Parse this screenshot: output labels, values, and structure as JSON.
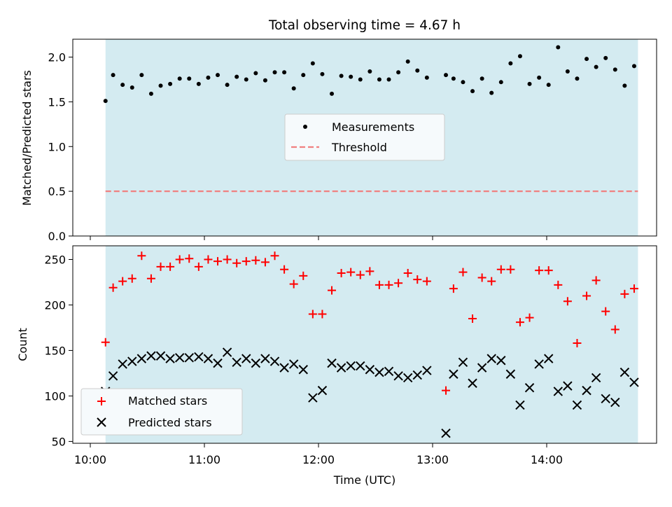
{
  "title": "Total observing time = 4.67 h",
  "colors": {
    "shade": "#d4ebf1",
    "threshold": "#f08080",
    "matched": "#ff0000",
    "predicted": "#000000",
    "measurement": "#000000"
  },
  "chart_data": [
    {
      "type": "scatter",
      "ylabel": "Matched/Predicted stars",
      "xlabel": "",
      "ylim": [
        0,
        2.2
      ],
      "yticks": [
        0.0,
        0.5,
        1.0,
        1.5,
        2.0
      ],
      "ytick_labels": [
        "0.0",
        "0.5",
        "1.0",
        "1.5",
        "2.0"
      ],
      "shaded_interval": [
        "10:08",
        "14:48"
      ],
      "threshold": 0.5,
      "legend": {
        "placement": "center",
        "entries": [
          "Measurements",
          "Threshold"
        ]
      },
      "series": [
        {
          "name": "Measurements",
          "x": [
            "10:08",
            "10:12",
            "10:17",
            "10:22",
            "10:27",
            "10:32",
            "10:37",
            "10:42",
            "10:47",
            "10:52",
            "10:57",
            "11:02",
            "11:07",
            "11:12",
            "11:17",
            "11:22",
            "11:27",
            "11:32",
            "11:37",
            "11:42",
            "11:47",
            "11:52",
            "11:57",
            "12:02",
            "12:07",
            "12:12",
            "12:17",
            "12:22",
            "12:27",
            "12:32",
            "12:37",
            "12:42",
            "12:47",
            "12:52",
            "12:57",
            "13:07",
            "13:11",
            "13:16",
            "13:21",
            "13:26",
            "13:31",
            "13:36",
            "13:41",
            "13:46",
            "13:51",
            "13:56",
            "14:01",
            "14:06",
            "14:11",
            "14:16",
            "14:21",
            "14:26",
            "14:31",
            "14:36",
            "14:41",
            "14:46"
          ],
          "y": [
            1.51,
            1.8,
            1.69,
            1.66,
            1.8,
            1.59,
            1.68,
            1.7,
            1.76,
            1.76,
            1.7,
            1.77,
            1.8,
            1.69,
            1.78,
            1.75,
            1.82,
            1.74,
            1.83,
            1.83,
            1.65,
            1.8,
            1.93,
            1.81,
            1.59,
            1.79,
            1.78,
            1.75,
            1.84,
            1.75,
            1.75,
            1.83,
            1.95,
            1.85,
            1.77,
            1.8,
            1.76,
            1.72,
            1.62,
            1.76,
            1.6,
            1.72,
            1.93,
            2.01,
            1.7,
            1.77,
            1.69,
            2.11,
            1.84,
            1.76,
            1.98,
            1.89,
            1.99,
            1.86,
            1.68,
            1.9
          ]
        }
      ]
    },
    {
      "type": "scatter",
      "ylabel": "Count",
      "xlabel": "Time (UTC)",
      "ylim": [
        48,
        265
      ],
      "yticks": [
        50,
        100,
        150,
        200,
        250
      ],
      "ytick_labels": [
        "50",
        "100",
        "150",
        "200",
        "250"
      ],
      "xticks": [
        "10:00",
        "11:00",
        "12:00",
        "13:00",
        "14:00"
      ],
      "xtick_labels": [
        "10:00",
        "11:00",
        "12:00",
        "13:00",
        "14:00"
      ],
      "shaded_interval": [
        "10:08",
        "14:48"
      ],
      "legend": {
        "placement": "lower left",
        "entries": [
          "Matched stars",
          "Predicted stars"
        ]
      },
      "series": [
        {
          "name": "Matched stars",
          "x": [
            "10:08",
            "10:12",
            "10:17",
            "10:22",
            "10:27",
            "10:32",
            "10:37",
            "10:42",
            "10:47",
            "10:52",
            "10:57",
            "11:02",
            "11:07",
            "11:12",
            "11:17",
            "11:22",
            "11:27",
            "11:32",
            "11:37",
            "11:42",
            "11:47",
            "11:52",
            "11:57",
            "12:02",
            "12:07",
            "12:12",
            "12:17",
            "12:22",
            "12:27",
            "12:32",
            "12:37",
            "12:42",
            "12:47",
            "12:52",
            "12:57",
            "13:07",
            "13:11",
            "13:16",
            "13:21",
            "13:26",
            "13:31",
            "13:36",
            "13:41",
            "13:46",
            "13:51",
            "13:56",
            "14:01",
            "14:06",
            "14:11",
            "14:16",
            "14:21",
            "14:26",
            "14:31",
            "14:36",
            "14:41",
            "14:46"
          ],
          "y": [
            159,
            219,
            226,
            229,
            254,
            229,
            242,
            242,
            250,
            251,
            242,
            250,
            248,
            250,
            246,
            248,
            249,
            247,
            254,
            239,
            223,
            232,
            190,
            190,
            216,
            235,
            236,
            233,
            237,
            222,
            222,
            224,
            235,
            228,
            226,
            106,
            218,
            236,
            185,
            230,
            226,
            239,
            239,
            181,
            186,
            238,
            238,
            222,
            204,
            158,
            210,
            227,
            193,
            173,
            212,
            218
          ]
        },
        {
          "name": "Predicted stars",
          "x": [
            "10:08",
            "10:12",
            "10:17",
            "10:22",
            "10:27",
            "10:32",
            "10:37",
            "10:42",
            "10:47",
            "10:52",
            "10:57",
            "11:02",
            "11:07",
            "11:12",
            "11:17",
            "11:22",
            "11:27",
            "11:32",
            "11:37",
            "11:42",
            "11:47",
            "11:52",
            "11:57",
            "12:02",
            "12:07",
            "12:12",
            "12:17",
            "12:22",
            "12:27",
            "12:32",
            "12:37",
            "12:42",
            "12:47",
            "12:52",
            "12:57",
            "13:07",
            "13:11",
            "13:16",
            "13:21",
            "13:26",
            "13:31",
            "13:36",
            "13:41",
            "13:46",
            "13:51",
            "13:56",
            "14:01",
            "14:06",
            "14:11",
            "14:16",
            "14:21",
            "14:26",
            "14:31",
            "14:36",
            "14:41",
            "14:46"
          ],
          "y": [
            105,
            122,
            135,
            138,
            141,
            144,
            144,
            141,
            142,
            142,
            143,
            141,
            136,
            148,
            137,
            141,
            136,
            141,
            138,
            131,
            135,
            129,
            98,
            106,
            136,
            131,
            133,
            133,
            129,
            126,
            127,
            122,
            120,
            123,
            128,
            59,
            124,
            137,
            114,
            131,
            141,
            139,
            124,
            90,
            109,
            135,
            141,
            105,
            111,
            90,
            106,
            120,
            97,
            93,
            126,
            115
          ]
        }
      ]
    }
  ]
}
